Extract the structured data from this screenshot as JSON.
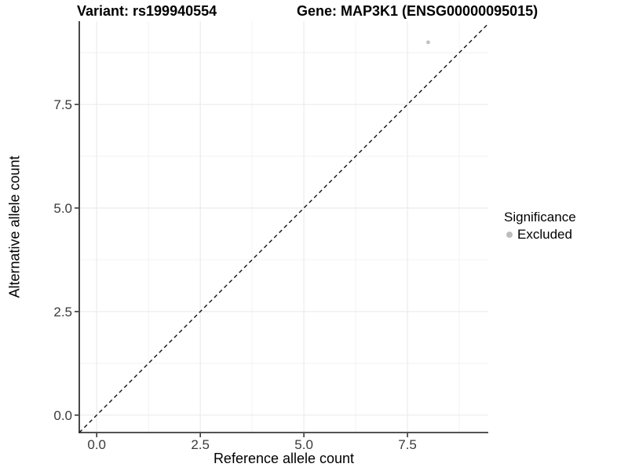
{
  "title": {
    "variant": "Variant: rs199940554",
    "gene": "Gene: MAP3K1 (ENSG00000095015)"
  },
  "axes": {
    "x_label": "Reference allele count",
    "y_label": "Alternative allele count"
  },
  "legend": {
    "title": "Significance",
    "items": [
      {
        "label": "Excluded",
        "color": "#bdbdbd"
      }
    ]
  },
  "colors": {
    "background": "#ffffff",
    "major_grid": "#ebebeb",
    "minor_grid": "#f4f4f4",
    "axis_line": "#1a1a1a",
    "tick_mark": "#1a1a1a",
    "tick_label": "#3a3a3a",
    "reference_line": "#111111",
    "point": "#c0c0c0"
  },
  "chart_data": {
    "type": "scatter",
    "title": "Variant: rs199940554   Gene: MAP3K1 (ENSG00000095015)",
    "xlabel": "Reference allele count",
    "ylabel": "Alternative allele count",
    "xlim": [
      -0.42,
      9.45
    ],
    "ylim": [
      -0.42,
      9.51
    ],
    "x_ticks": {
      "values": [
        0,
        2.5,
        5,
        7.5
      ],
      "labels": [
        "0.0",
        "2.5",
        "5.0",
        "7.5"
      ]
    },
    "y_ticks": {
      "values": [
        0,
        2.5,
        5,
        7.5
      ],
      "labels": [
        "0.0",
        "2.5",
        "5.0",
        "7.5"
      ]
    },
    "minor_ticks": [
      1.25,
      3.75,
      6.25,
      8.75
    ],
    "grid": "major+minor",
    "legend_position": "right",
    "reference_line": {
      "type": "identity",
      "slope": 1,
      "intercept": 0,
      "style": "dashed"
    },
    "series": [
      {
        "name": "Excluded",
        "color": "#c0c0c0",
        "points": [
          {
            "x": 8,
            "y": 9
          }
        ]
      }
    ]
  }
}
